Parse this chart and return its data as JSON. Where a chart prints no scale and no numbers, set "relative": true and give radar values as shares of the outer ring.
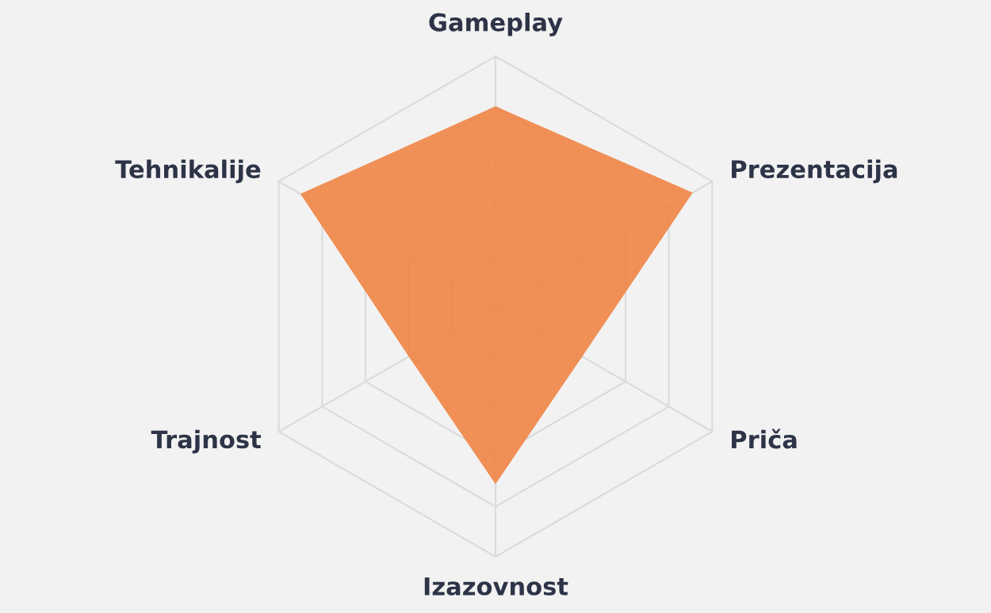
{
  "chart_data": {
    "type": "radar",
    "relative": true,
    "grid": true,
    "categories": [
      "Gameplay",
      "Prezentacija",
      "Priča",
      "Izazovnost",
      "Trajnost",
      "Tehnikalije"
    ],
    "series": [
      {
        "color": "#f07f3c",
        "values": [
          0.8,
          0.91,
          0.4,
          0.71,
          0.4,
          0.9
        ]
      }
    ]
  }
}
